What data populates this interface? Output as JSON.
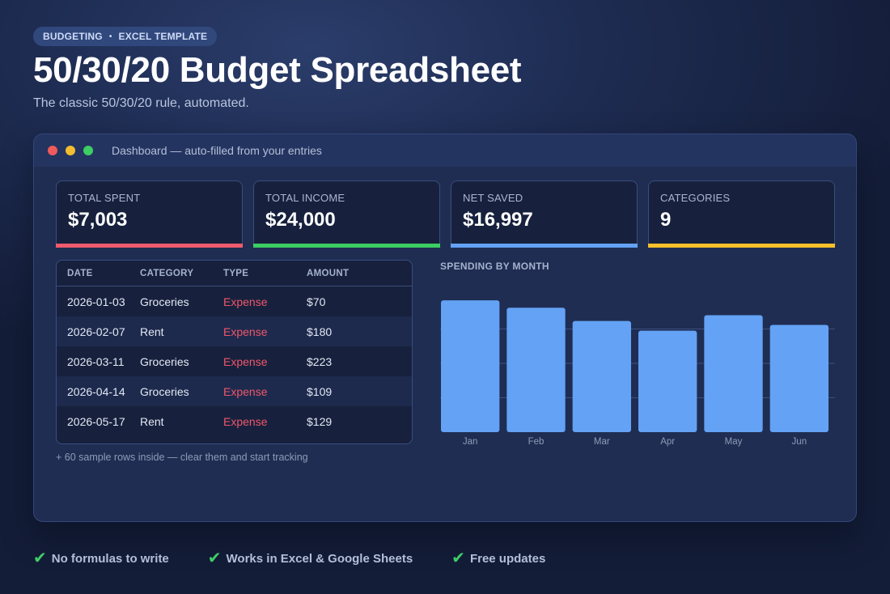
{
  "badge": {
    "left": "BUDGETING",
    "sep": "•",
    "right": "EXCEL TEMPLATE"
  },
  "hero": {
    "title": "50/30/20 Budget Spreadsheet",
    "subtitle": "The classic 50/30/20 rule, automated."
  },
  "window": {
    "title": "Dashboard — auto-filled from your entries"
  },
  "kpis": [
    {
      "label": "TOTAL SPENT",
      "value": "$7,003",
      "color": "#ef5b6d"
    },
    {
      "label": "TOTAL INCOME",
      "value": "$24,000",
      "color": "#3ccd63"
    },
    {
      "label": "NET SAVED",
      "value": "$16,997",
      "color": "#63a2f5"
    },
    {
      "label": "CATEGORIES",
      "value": "9",
      "color": "#f5c02c"
    }
  ],
  "table": {
    "headers": [
      "DATE",
      "CATEGORY",
      "TYPE",
      "AMOUNT"
    ],
    "rows": [
      [
        "2026-01-03",
        "Groceries",
        "Expense",
        "$70"
      ],
      [
        "2026-02-07",
        "Rent",
        "Expense",
        "$180"
      ],
      [
        "2026-03-11",
        "Groceries",
        "Expense",
        "$223"
      ],
      [
        "2026-04-14",
        "Groceries",
        "Expense",
        "$109"
      ],
      [
        "2026-05-17",
        "Rent",
        "Expense",
        "$129"
      ]
    ],
    "note": "+ 60 sample rows inside — clear them and start tracking"
  },
  "chart_data": {
    "type": "bar",
    "title": "SPENDING BY MONTH",
    "categories": [
      "Jan",
      "Feb",
      "Mar",
      "Apr",
      "May",
      "Jun"
    ],
    "values": [
      1150,
      1085,
      970,
      885,
      1020,
      935
    ],
    "ylim": [
      0,
      1200
    ],
    "grid": true,
    "bar_color": "#63a2f5"
  },
  "features": [
    {
      "icon": "check-icon",
      "label": "No formulas to write"
    },
    {
      "icon": "check-icon",
      "label": "Works in Excel & Google Sheets"
    },
    {
      "icon": "check-icon",
      "label": "Free updates"
    }
  ]
}
